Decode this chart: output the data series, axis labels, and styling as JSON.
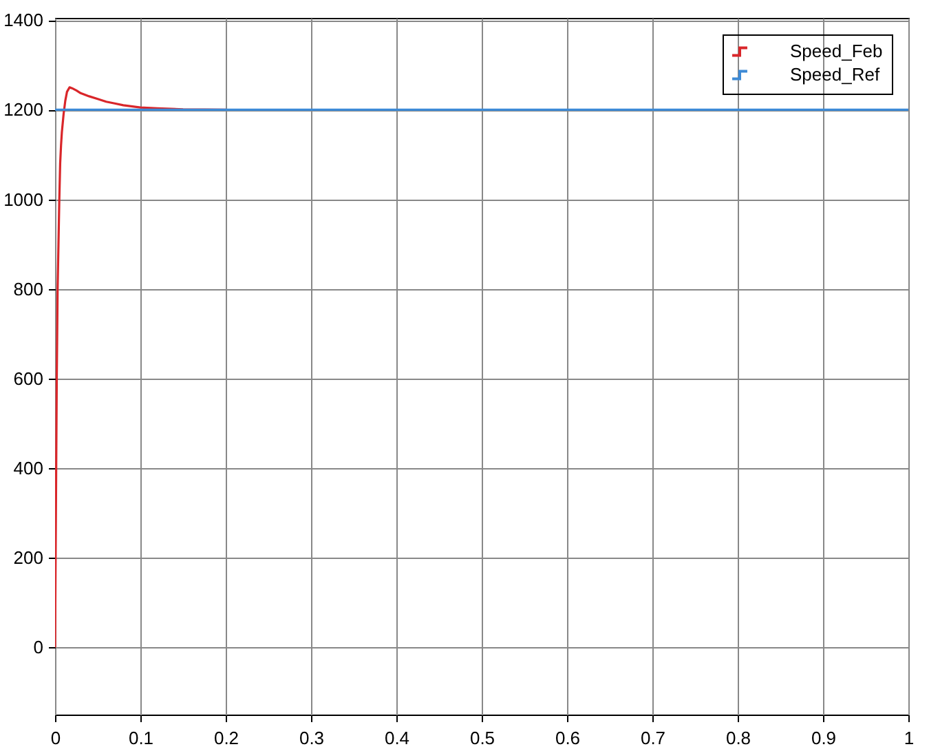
{
  "chart_data": {
    "type": "line",
    "xlim": [
      0,
      1
    ],
    "ylim": [
      -150,
      1405
    ],
    "xticks": [
      0,
      0.1,
      0.2,
      0.3,
      0.4,
      0.5,
      0.6,
      0.7,
      0.8,
      0.9,
      1
    ],
    "yticks": [
      0,
      200,
      400,
      600,
      800,
      1000,
      1200,
      1400
    ],
    "grid": true,
    "legend": "top right",
    "line_style": "solid",
    "series": [
      {
        "name": "Speed_Feb",
        "color": "#d9262a",
        "x": [
          0,
          0.001,
          0.002,
          0.003,
          0.004,
          0.005,
          0.006,
          0.007,
          0.008,
          0.01,
          0.012,
          0.014,
          0.017,
          0.02,
          0.025,
          0.03,
          0.04,
          0.05,
          0.06,
          0.07,
          0.08,
          0.1,
          0.12,
          0.15,
          0.2
        ],
        "values": [
          0,
          300,
          600,
          800,
          900,
          1000,
          1080,
          1120,
          1150,
          1190,
          1220,
          1240,
          1250,
          1248,
          1243,
          1237,
          1230,
          1224,
          1218,
          1214,
          1210,
          1205,
          1203,
          1201,
          1200
        ]
      },
      {
        "name": "Speed_Ref",
        "color": "#3d8ad6",
        "x": [
          0,
          1
        ],
        "values": [
          1200,
          1200
        ]
      }
    ]
  }
}
